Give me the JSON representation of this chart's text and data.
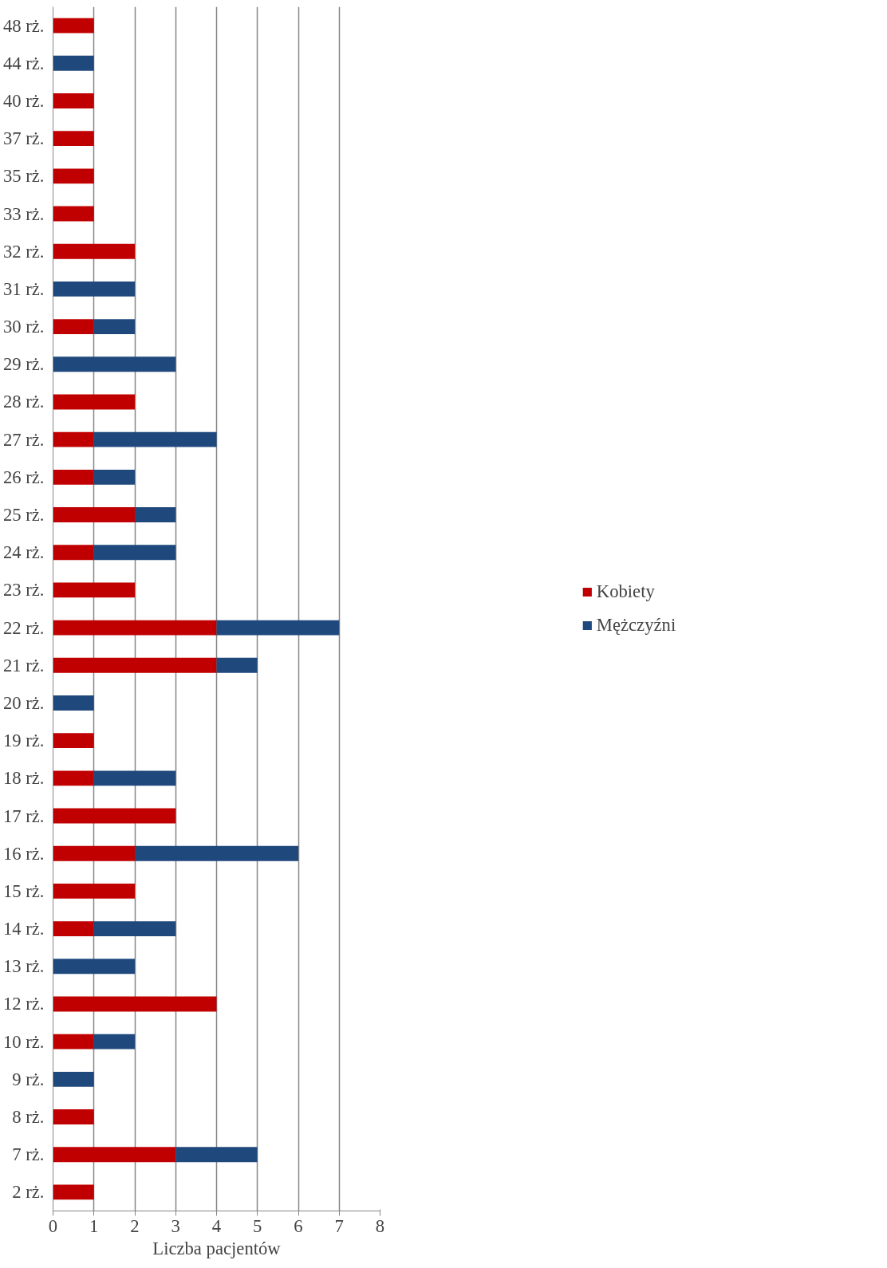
{
  "chart_data": {
    "type": "bar",
    "orientation": "horizontal",
    "stacked": true,
    "xlabel": "Liczba pacjentów",
    "categories": [
      "48 rż.",
      "44 rż.",
      "40 rż.",
      "37 rż.",
      "35 rż.",
      "33 rż.",
      "32 rż.",
      "31 rż.",
      "30 rż.",
      "29 rż.",
      "28 rż.",
      "27 rż.",
      "26 rż.",
      "25 rż.",
      "24 rż.",
      "23 rż.",
      "22 rż.",
      "21 rż.",
      "20 rż.",
      "19 rż.",
      "18 rż.",
      "17 rż.",
      "16 rż.",
      "15 rż.",
      "14 rż.",
      "13 rż.",
      "12 rż.",
      "10 rż.",
      "9 rż.",
      "8 rż.",
      "7 rż.",
      "2 rż."
    ],
    "series": [
      {
        "name": "Kobiety",
        "color": "#c00000",
        "values": [
          1,
          0,
          1,
          1,
          1,
          1,
          2,
          0,
          1,
          0,
          2,
          1,
          1,
          2,
          1,
          2,
          4,
          4,
          0,
          1,
          1,
          3,
          2,
          2,
          1,
          0,
          4,
          1,
          0,
          1,
          3,
          1
        ]
      },
      {
        "name": "Mężczyźni",
        "color": "#1f497d",
        "values": [
          0,
          1,
          0,
          0,
          0,
          0,
          0,
          2,
          1,
          3,
          0,
          3,
          1,
          1,
          2,
          0,
          3,
          1,
          1,
          0,
          2,
          0,
          4,
          0,
          2,
          2,
          0,
          1,
          1,
          0,
          2,
          0
        ]
      }
    ],
    "xlim": [
      0,
      8
    ],
    "xticks": [
      0,
      1,
      2,
      3,
      4,
      5,
      6,
      7,
      8
    ],
    "grid": "x",
    "legend": "right"
  }
}
